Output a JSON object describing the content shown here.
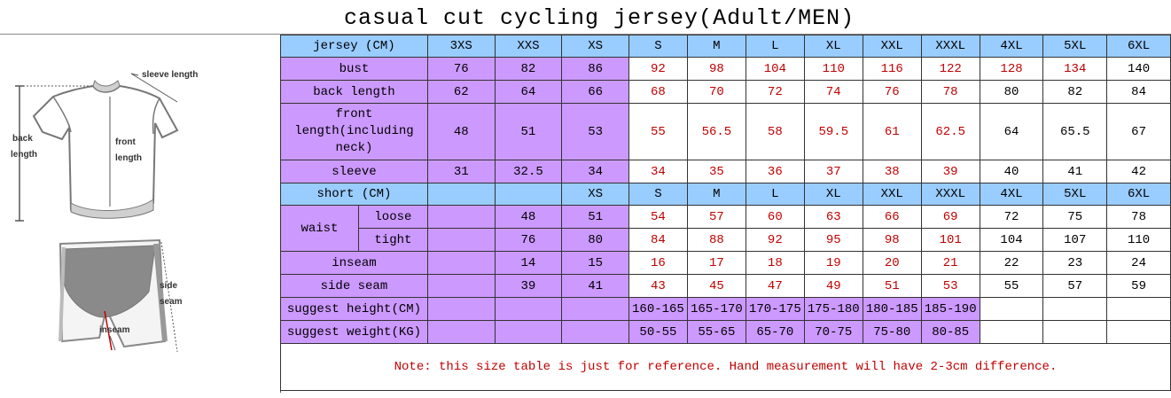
{
  "title": "casual cut cycling jersey(Adult/MEN)",
  "figure": {
    "sleeve_label": "sleeve length",
    "back_label_1": "back",
    "back_label_2": "length",
    "front_label_1": "front",
    "front_label_2": "length",
    "side_label_1": "side",
    "side_label_2": "seam",
    "inseam_label": "inseam"
  },
  "jersey": {
    "header_label": "jersey (CM)",
    "sizes": [
      "3XS",
      "XXS",
      "XS",
      "S",
      "M",
      "L",
      "XL",
      "XXL",
      "XXXL",
      "4XL",
      "5XL",
      "6XL"
    ],
    "rows": [
      {
        "label": "bust",
        "values": [
          "76",
          "82",
          "86",
          "92",
          "98",
          "104",
          "110",
          "116",
          "122",
          "128",
          "134",
          "140"
        ]
      },
      {
        "label": "back length",
        "values": [
          "62",
          "64",
          "66",
          "68",
          "70",
          "72",
          "74",
          "76",
          "78",
          "80",
          "82",
          "84"
        ]
      },
      {
        "label": "front length(including neck)",
        "values": [
          "48",
          "51",
          "53",
          "55",
          "56.5",
          "58",
          "59.5",
          "61",
          "62.5",
          "64",
          "65.5",
          "67"
        ]
      },
      {
        "label": "sleeve",
        "values": [
          "31",
          "32.5",
          "34",
          "34",
          "35",
          "36",
          "37",
          "38",
          "39",
          "40",
          "41",
          "42"
        ]
      }
    ]
  },
  "short": {
    "header_label": "short (CM)",
    "sizes": [
      "",
      "",
      "XS",
      "S",
      "M",
      "L",
      "XL",
      "XXL",
      "XXXL",
      "4XL",
      "5XL",
      "6XL"
    ],
    "waist_label": "waist",
    "loose_label": "loose",
    "tight_label": "tight",
    "loose_values": [
      "",
      "48",
      "51",
      "54",
      "57",
      "60",
      "63",
      "66",
      "69",
      "72",
      "75",
      "78"
    ],
    "tight_values": [
      "",
      "76",
      "80",
      "84",
      "88",
      "92",
      "95",
      "98",
      "101",
      "104",
      "107",
      "110"
    ],
    "inseam_label": "inseam",
    "inseam_values": [
      "",
      "14",
      "15",
      "16",
      "17",
      "18",
      "19",
      "20",
      "21",
      "22",
      "23",
      "24"
    ],
    "side_label": "side seam",
    "side_values": [
      "",
      "39",
      "41",
      "43",
      "45",
      "47",
      "49",
      "51",
      "53",
      "55",
      "57",
      "59"
    ],
    "height_label": "suggest height(CM)",
    "height_values": [
      "",
      "",
      "",
      "160-165",
      "165-170",
      "170-175",
      "175-180",
      "180-185",
      "185-190",
      "",
      "",
      ""
    ],
    "weight_label": "suggest weight(KG)",
    "weight_values": [
      "",
      "",
      "",
      "50-55",
      "55-65",
      "65-70",
      "70-75",
      "75-80",
      "80-85",
      "",
      "",
      ""
    ]
  },
  "note": "Note: this size table is just for reference. Hand measurement will have 2-3cm difference.",
  "colors": {
    "header_blue": "#99ccff",
    "label_purple": "#cc99ff",
    "red_text": "#c00000"
  }
}
